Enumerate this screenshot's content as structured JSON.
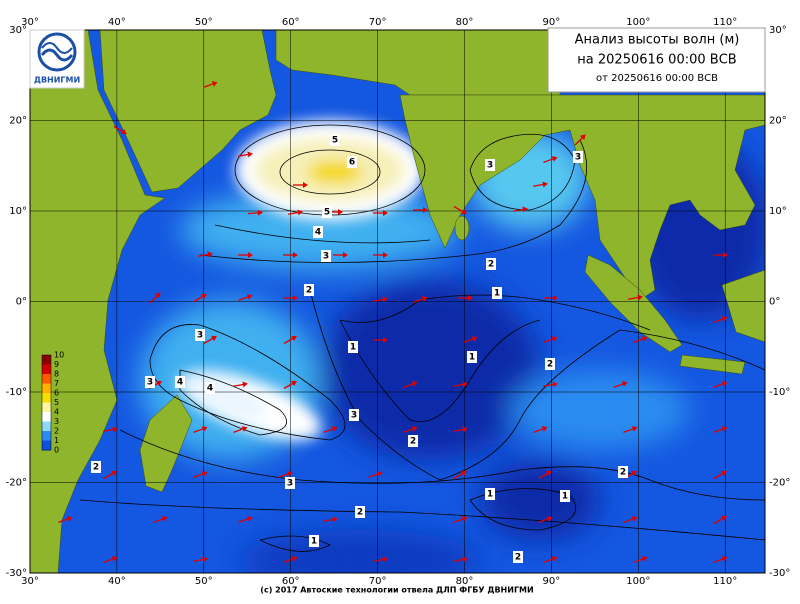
{
  "header": {
    "title": "Анализ высоты волн (м)",
    "valid": "на 20250616 00:00 ВСВ",
    "issued": "от 20250616 00:00 ВСВ"
  },
  "logo": {
    "text": "ДВНИГМИ"
  },
  "axes": {
    "lon_labels_top": [
      "30°",
      "40°",
      "50°",
      "60°",
      "70°",
      "80°",
      "90°",
      "100°",
      "110°"
    ],
    "lon_labels_bottom": [
      "30°",
      "40°",
      "50°",
      "60°",
      "70°",
      "80°",
      "90°",
      "100°",
      "110°"
    ],
    "lat_labels_left": [
      "30°",
      "20°",
      "10°",
      "0°",
      "-10°",
      "-20°",
      "-30°"
    ],
    "lat_labels_right": [
      "30°",
      "20°",
      "10°",
      "0°",
      "-10°",
      "-20°",
      "-30°"
    ]
  },
  "colorbar": {
    "labels": [
      "10",
      "9",
      "8",
      "7",
      "6",
      "5",
      "4",
      "3",
      "2",
      "1",
      "0"
    ]
  },
  "contour_labels": [
    "5",
    "6",
    "5",
    "4",
    "3",
    "2",
    "1",
    "2",
    "3",
    "3",
    "1",
    "1",
    "2",
    "3",
    "4",
    "4",
    "3",
    "3",
    "2",
    "2",
    "3",
    "2",
    "1",
    "1",
    "2",
    "1",
    "2"
  ],
  "footer": "(c) 2017 Автоские технологии отвела ДЛП ФГБУ ДВНИГМИ"
}
